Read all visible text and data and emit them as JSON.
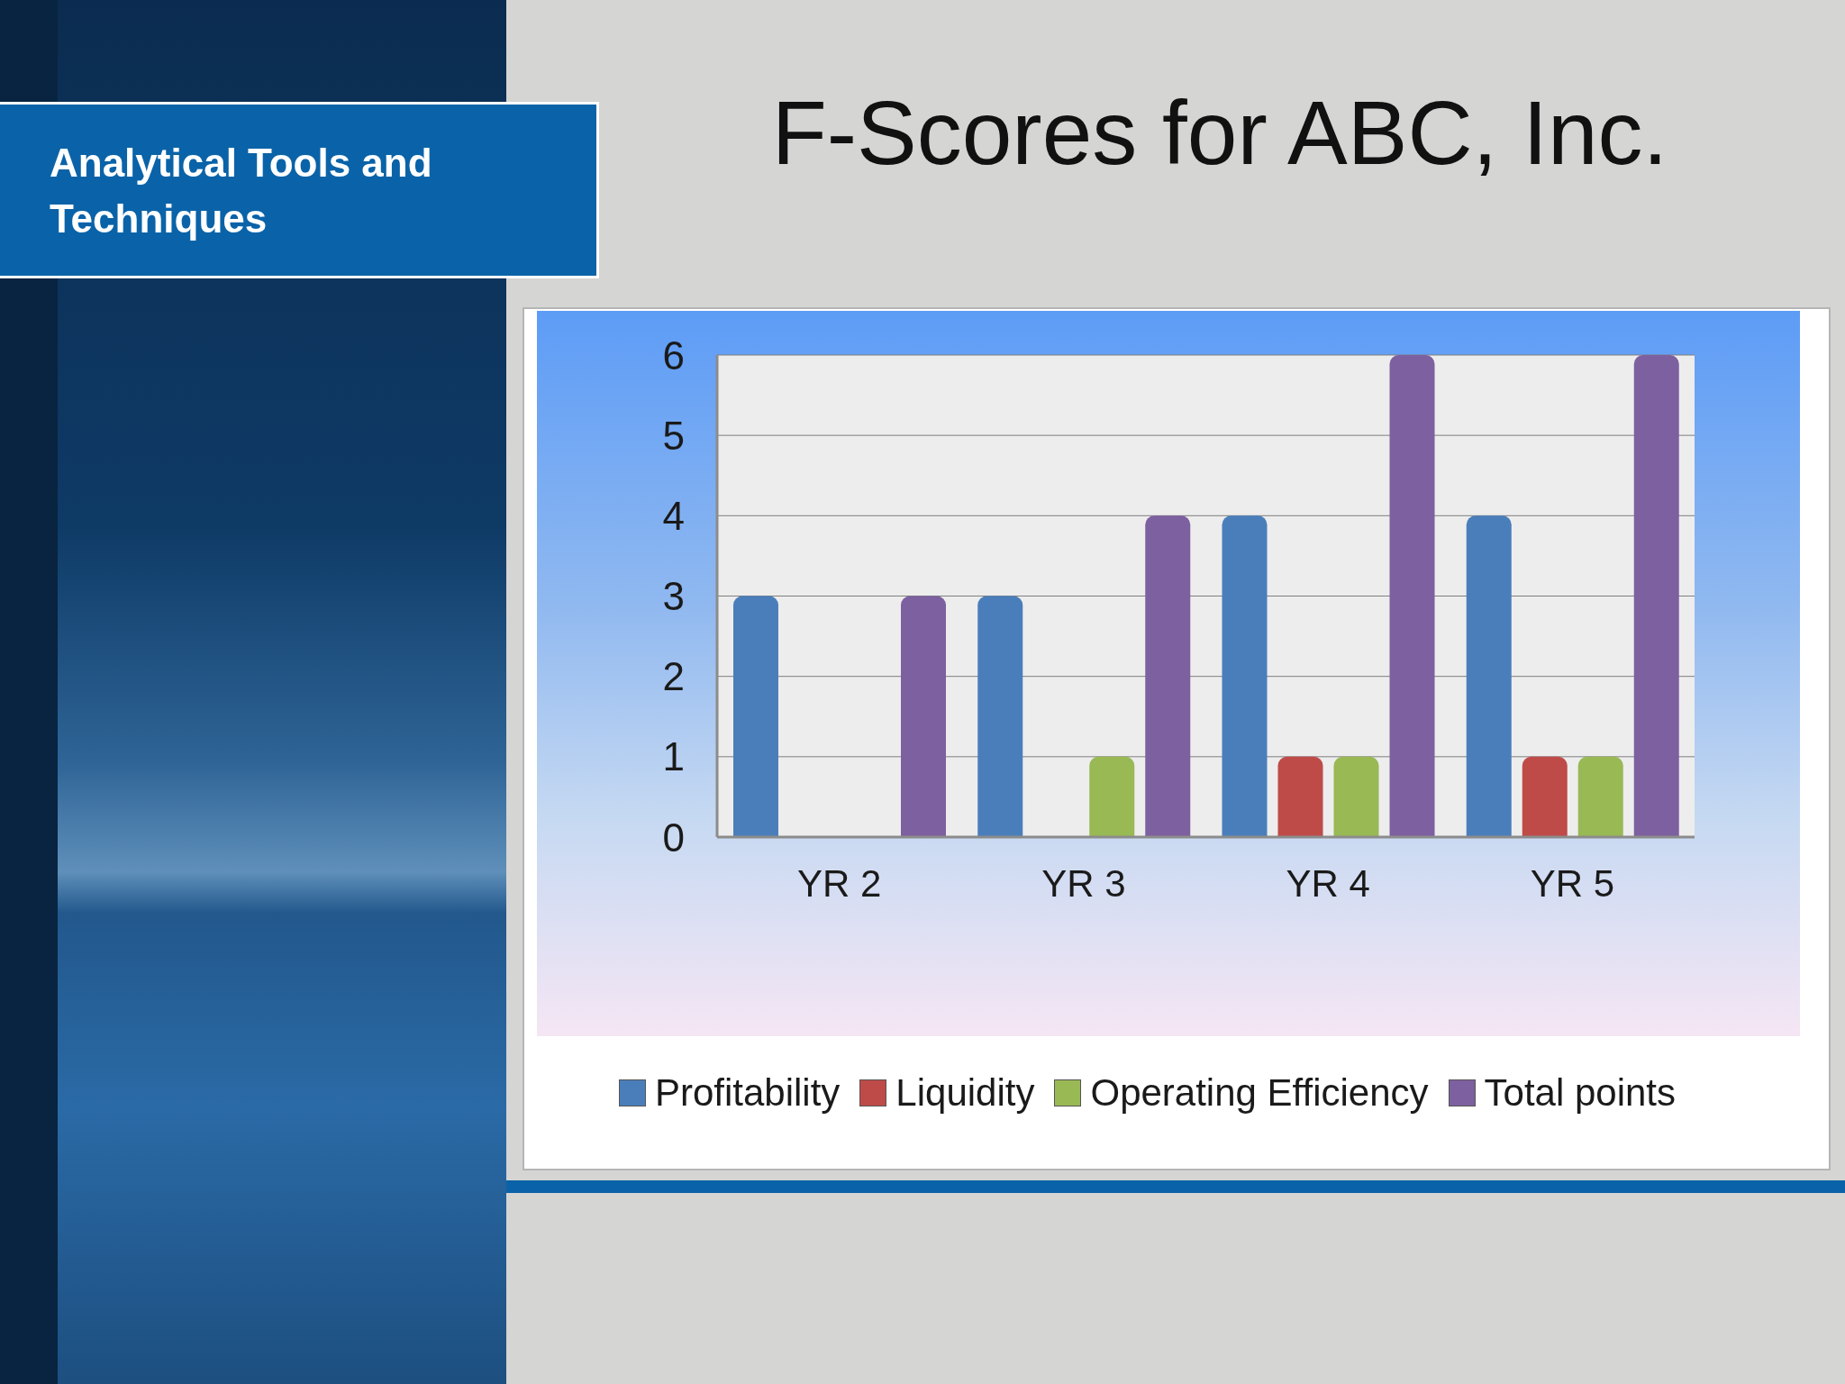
{
  "chart_data": {
    "type": "bar",
    "title": "F-Scores for ABC, Inc.",
    "subtitle": "Analytical Tools and Techniques",
    "categories": [
      "YR 2",
      "YR 3",
      "YR 4",
      "YR 5"
    ],
    "series": [
      {
        "name": "Profitability",
        "color": "#4a7ebb",
        "values": [
          3,
          3,
          4,
          4
        ]
      },
      {
        "name": "Liquidity",
        "color": "#be4b48",
        "values": [
          0,
          0,
          1,
          1
        ]
      },
      {
        "name": "Operating Efficiency",
        "color": "#98b954",
        "values": [
          0,
          1,
          1,
          1
        ]
      },
      {
        "name": "Total points",
        "color": "#7d60a0",
        "values": [
          3,
          4,
          6,
          6
        ]
      }
    ],
    "ylim": [
      0,
      6
    ],
    "yticks": [
      0,
      1,
      2,
      3,
      4,
      5,
      6
    ],
    "grid": "y",
    "legend": "bottom"
  }
}
